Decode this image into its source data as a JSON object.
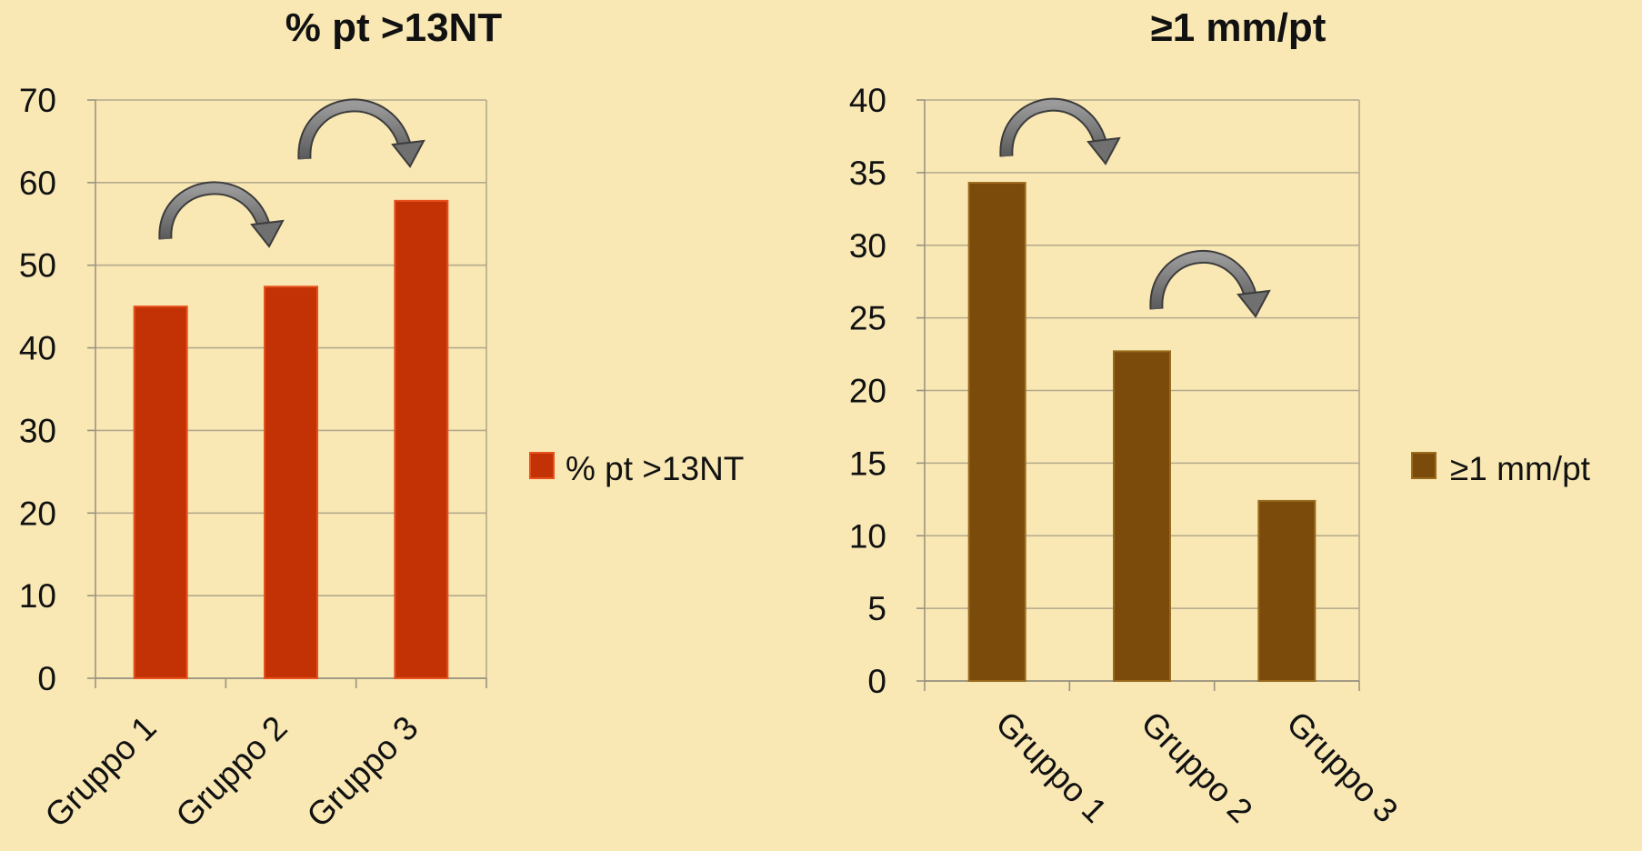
{
  "chart_data": [
    {
      "type": "bar",
      "title": "% pt >13NT",
      "categories": [
        "Gruppo 1",
        "Gruppo 2",
        "Gruppo 3"
      ],
      "series": [
        {
          "name": "% pt >13NT",
          "values": [
            45,
            47.4,
            57.8
          ]
        }
      ],
      "ylim": [
        0,
        70
      ],
      "yticks": [
        "0",
        "10",
        "20",
        "30",
        "40",
        "50",
        "60",
        "70"
      ],
      "xlabel": "",
      "ylabel": "",
      "grid": true,
      "legend": "right",
      "annotations": [
        "curved-arrow Gruppo 1 to Gruppo 2",
        "curved-arrow Gruppo 2 to Gruppo 3"
      ],
      "colors": {
        "bar": "#c23205",
        "bar_edge": "#e8501c"
      }
    },
    {
      "type": "bar",
      "title": "≥1 mm/pt",
      "categories": [
        "Gruppo 1",
        "Gruppo 2",
        "Gruppo 3"
      ],
      "series": [
        {
          "name": "≥1 mm/pt",
          "values": [
            34.3,
            22.7,
            12.4
          ]
        }
      ],
      "ylim": [
        0,
        40
      ],
      "yticks": [
        "0",
        "5",
        "10",
        "15",
        "20",
        "25",
        "30",
        "35",
        "40"
      ],
      "xlabel": "",
      "ylabel": "",
      "grid": true,
      "legend": "right",
      "annotations": [
        "curved-arrow Gruppo 1 to Gruppo 2",
        "curved-arrow Gruppo 2 to Gruppo 3"
      ],
      "colors": {
        "bar": "#7a4b0b",
        "bar_edge": "#9a6a1e"
      }
    }
  ]
}
